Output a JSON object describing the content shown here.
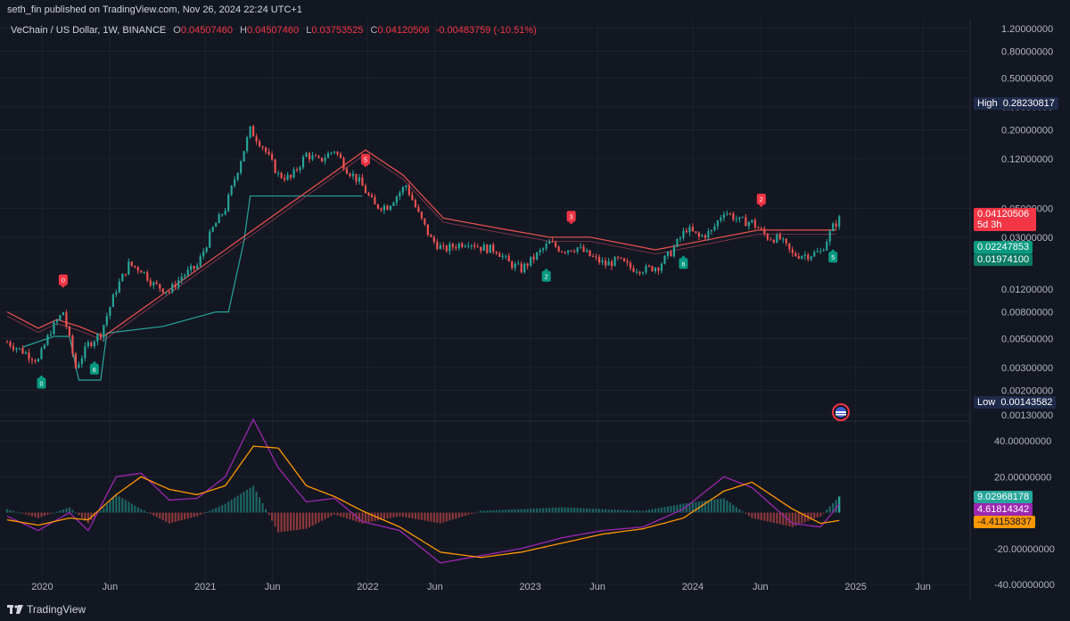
{
  "header": {
    "published": "seth_fin published on TradingView.com, Nov 26, 2024 22:24 UTC+1"
  },
  "legend": {
    "symbol": "VeChain / US Dollar, 1W, BINANCE",
    "o_label": "O",
    "o": "0.04507460",
    "h_label": "H",
    "h": "0.04507460",
    "l_label": "L",
    "l": "0.03753525",
    "c_label": "C",
    "c": "0.04120506",
    "change": "-0.00483759 (-10.51%)"
  },
  "price_scale": {
    "ticks": [
      "1.20000000",
      "0.80000000",
      "0.50000000",
      "0.30000000",
      "0.20000000",
      "0.12000000",
      "0.05000000",
      "0.03000000",
      "0.01200000",
      "0.00800000",
      "0.00500000",
      "0.00300000",
      "0.00200000",
      "0.00130000"
    ],
    "high_label": "High",
    "high_value": "0.28230817",
    "low_label": "Low",
    "low_value": "0.00143582",
    "last_price": "0.04120506",
    "countdown": "5d 3h",
    "level1": "0.02247853",
    "level2": "0.01974100"
  },
  "macd_scale": {
    "ticks": [
      "40.00000000",
      "20.00000000",
      "-20.00000000",
      "-40.00000000"
    ],
    "hist_value": "9.02968178",
    "macd_value": "4.61814342",
    "signal_value": "-4.41153837"
  },
  "time_axis": {
    "labels": [
      "2020",
      "Jun",
      "2021",
      "Jun",
      "2022",
      "Jun",
      "2023",
      "Jun",
      "2024",
      "Jun",
      "2025",
      "Jun"
    ]
  },
  "footer": {
    "brand": "TradingView"
  },
  "colors": {
    "bg": "#131722",
    "up": "#26a69a",
    "down": "#ef5350",
    "macd": "#9c27b0",
    "signal": "#ff9800",
    "grid": "#1e222d",
    "teal_line": "#26a69a",
    "red_line": "#ef5350"
  },
  "chart_data": [
    {
      "type": "candlestick",
      "title": "VeChain / US Dollar, 1W, BINANCE",
      "scale": "log",
      "ylim": [
        0.0012,
        1.4
      ],
      "x_range": [
        "2019-10-14",
        "2025-09-15"
      ],
      "series": [
        {
          "name": "VET/USD",
          "points": [
            [
              "2019-10-14",
              0.0047
            ],
            [
              "2019-11-18",
              0.004
            ],
            [
              "2019-12-23",
              0.0034
            ],
            [
              "2020-01-20",
              0.0058
            ],
            [
              "2020-02-17",
              0.008
            ],
            [
              "2020-03-16",
              0.003
            ],
            [
              "2020-04-13",
              0.0045
            ],
            [
              "2020-05-11",
              0.0055
            ],
            [
              "2020-06-15",
              0.012
            ],
            [
              "2020-07-13",
              0.0185
            ],
            [
              "2020-08-10",
              0.017
            ],
            [
              "2020-09-07",
              0.013
            ],
            [
              "2020-10-12",
              0.0115
            ],
            [
              "2020-11-09",
              0.015
            ],
            [
              "2020-12-14",
              0.018
            ],
            [
              "2021-01-18",
              0.035
            ],
            [
              "2021-02-15",
              0.05
            ],
            [
              "2021-03-15",
              0.1
            ],
            [
              "2021-04-12",
              0.2
            ],
            [
              "2021-05-10",
              0.15
            ],
            [
              "2021-06-14",
              0.09
            ],
            [
              "2021-07-12",
              0.085
            ],
            [
              "2021-08-16",
              0.13
            ],
            [
              "2021-09-13",
              0.115
            ],
            [
              "2021-10-18",
              0.14
            ],
            [
              "2021-11-15",
              0.1
            ],
            [
              "2021-12-13",
              0.08
            ],
            [
              "2022-01-17",
              0.052
            ],
            [
              "2022-02-14",
              0.052
            ],
            [
              "2022-03-28",
              0.075
            ],
            [
              "2022-04-25",
              0.045
            ],
            [
              "2022-05-23",
              0.029
            ],
            [
              "2022-06-20",
              0.024
            ],
            [
              "2022-07-18",
              0.026
            ],
            [
              "2022-08-15",
              0.028
            ],
            [
              "2022-09-12",
              0.025
            ],
            [
              "2022-10-17",
              0.024
            ],
            [
              "2022-11-14",
              0.019
            ],
            [
              "2022-12-12",
              0.017
            ],
            [
              "2023-01-16",
              0.022
            ],
            [
              "2023-02-13",
              0.027
            ],
            [
              "2023-03-13",
              0.024
            ],
            [
              "2023-04-17",
              0.025
            ],
            [
              "2023-05-15",
              0.0215
            ],
            [
              "2023-06-19",
              0.0185
            ],
            [
              "2023-07-17",
              0.02
            ],
            [
              "2023-08-14",
              0.0175
            ],
            [
              "2023-09-18",
              0.017
            ],
            [
              "2023-10-16",
              0.018
            ],
            [
              "2023-11-13",
              0.023
            ],
            [
              "2023-12-18",
              0.035
            ],
            [
              "2024-01-15",
              0.03
            ],
            [
              "2024-02-12",
              0.033
            ],
            [
              "2024-03-11",
              0.048
            ],
            [
              "2024-04-15",
              0.04
            ],
            [
              "2024-05-13",
              0.039
            ],
            [
              "2024-06-17",
              0.03
            ],
            [
              "2024-07-15",
              0.029
            ],
            [
              "2024-08-12",
              0.022
            ],
            [
              "2024-09-16",
              0.022
            ],
            [
              "2024-10-14",
              0.023
            ],
            [
              "2024-11-11",
              0.036
            ],
            [
              "2024-11-25",
              0.0412
            ]
          ]
        }
      ],
      "supertrend_up": [
        [
          "2019-11-18",
          0.0043
        ],
        [
          "2020-01-27",
          0.0052
        ],
        [
          "2020-03-02",
          0.0052
        ],
        [
          "2020-03-23",
          0.0024
        ],
        [
          "2020-05-11",
          0.0024
        ],
        [
          "2020-05-25",
          0.0055
        ],
        [
          "2020-09-28",
          0.0062
        ],
        [
          "2021-01-25",
          0.008
        ],
        [
          "2021-02-22",
          0.008
        ],
        [
          "2021-03-29",
          0.028
        ],
        [
          "2021-04-12",
          0.062
        ],
        [
          "2021-12-20",
          0.062
        ]
      ],
      "supertrend_down": [
        [
          "2019-10-14",
          0.008
        ],
        [
          "2019-12-23",
          0.006
        ],
        [
          "2020-02-03",
          0.007
        ],
        [
          "2020-03-23",
          0.0062
        ],
        [
          "2020-05-18",
          0.0052
        ],
        [
          "2021-12-27",
          0.14
        ],
        [
          "2022-03-21",
          0.09
        ],
        [
          "2022-06-20",
          0.042
        ],
        [
          "2022-10-24",
          0.035
        ],
        [
          "2023-02-13",
          0.03
        ],
        [
          "2023-05-15",
          0.03
        ],
        [
          "2023-10-09",
          0.024
        ],
        [
          "2024-05-27",
          0.034
        ],
        [
          "2024-10-14",
          0.034
        ],
        [
          "2024-11-18",
          0.034
        ]
      ],
      "signals": [
        {
          "date": "2019-12-30",
          "kind": "buy",
          "label": "0"
        },
        {
          "date": "2020-02-17",
          "kind": "sell",
          "label": "0"
        },
        {
          "date": "2020-04-27",
          "kind": "buy",
          "label": "6"
        },
        {
          "date": "2021-12-27",
          "kind": "sell",
          "label": "5"
        },
        {
          "date": "2023-02-06",
          "kind": "buy",
          "label": "2"
        },
        {
          "date": "2023-04-03",
          "kind": "sell",
          "label": "3"
        },
        {
          "date": "2023-12-11",
          "kind": "buy",
          "label": "6"
        },
        {
          "date": "2024-06-03",
          "kind": "sell",
          "label": "2"
        },
        {
          "date": "2024-11-11",
          "kind": "buy",
          "label": "5"
        }
      ]
    },
    {
      "type": "line",
      "title": "MACD",
      "ylim": [
        -40,
        50
      ],
      "series": [
        {
          "name": "MACD",
          "points": [
            [
              "2019-10-14",
              -2
            ],
            [
              "2019-12-23",
              -10
            ],
            [
              "2020-03-02",
              0
            ],
            [
              "2020-04-13",
              -10
            ],
            [
              "2020-06-15",
              20
            ],
            [
              "2020-08-10",
              22
            ],
            [
              "2020-10-12",
              7
            ],
            [
              "2020-12-14",
              8
            ],
            [
              "2021-02-15",
              20
            ],
            [
              "2021-04-19",
              52
            ],
            [
              "2021-06-14",
              25
            ],
            [
              "2021-08-16",
              6
            ],
            [
              "2021-10-18",
              8
            ],
            [
              "2021-12-20",
              -5
            ],
            [
              "2022-03-14",
              -10
            ],
            [
              "2022-06-13",
              -28
            ],
            [
              "2022-09-12",
              -24
            ],
            [
              "2022-12-12",
              -20
            ],
            [
              "2023-03-13",
              -14
            ],
            [
              "2023-06-12",
              -10
            ],
            [
              "2023-09-11",
              -8
            ],
            [
              "2023-12-11",
              2
            ],
            [
              "2024-03-11",
              20
            ],
            [
              "2024-05-13",
              14
            ],
            [
              "2024-08-12",
              -6
            ],
            [
              "2024-10-14",
              -8
            ],
            [
              "2024-11-25",
              4.6
            ]
          ]
        },
        {
          "name": "Signal",
          "points": [
            [
              "2019-10-14",
              -4
            ],
            [
              "2019-12-23",
              -7
            ],
            [
              "2020-03-02",
              -3
            ],
            [
              "2020-04-13",
              -4
            ],
            [
              "2020-06-15",
              10
            ],
            [
              "2020-08-10",
              20
            ],
            [
              "2020-10-12",
              13
            ],
            [
              "2020-12-14",
              10
            ],
            [
              "2021-02-15",
              15
            ],
            [
              "2021-04-19",
              37
            ],
            [
              "2021-06-14",
              36
            ],
            [
              "2021-08-16",
              15
            ],
            [
              "2021-10-18",
              9
            ],
            [
              "2021-12-20",
              1
            ],
            [
              "2022-03-14",
              -8
            ],
            [
              "2022-06-13",
              -22
            ],
            [
              "2022-09-12",
              -25
            ],
            [
              "2022-12-12",
              -22
            ],
            [
              "2023-03-13",
              -17
            ],
            [
              "2023-06-12",
              -12
            ],
            [
              "2023-09-11",
              -9
            ],
            [
              "2023-12-11",
              -3
            ],
            [
              "2024-03-11",
              12
            ],
            [
              "2024-05-13",
              17
            ],
            [
              "2024-08-12",
              2
            ],
            [
              "2024-10-14",
              -6
            ],
            [
              "2024-11-25",
              -4.4
            ]
          ]
        }
      ],
      "histogram_last": 9.02968178
    }
  ]
}
